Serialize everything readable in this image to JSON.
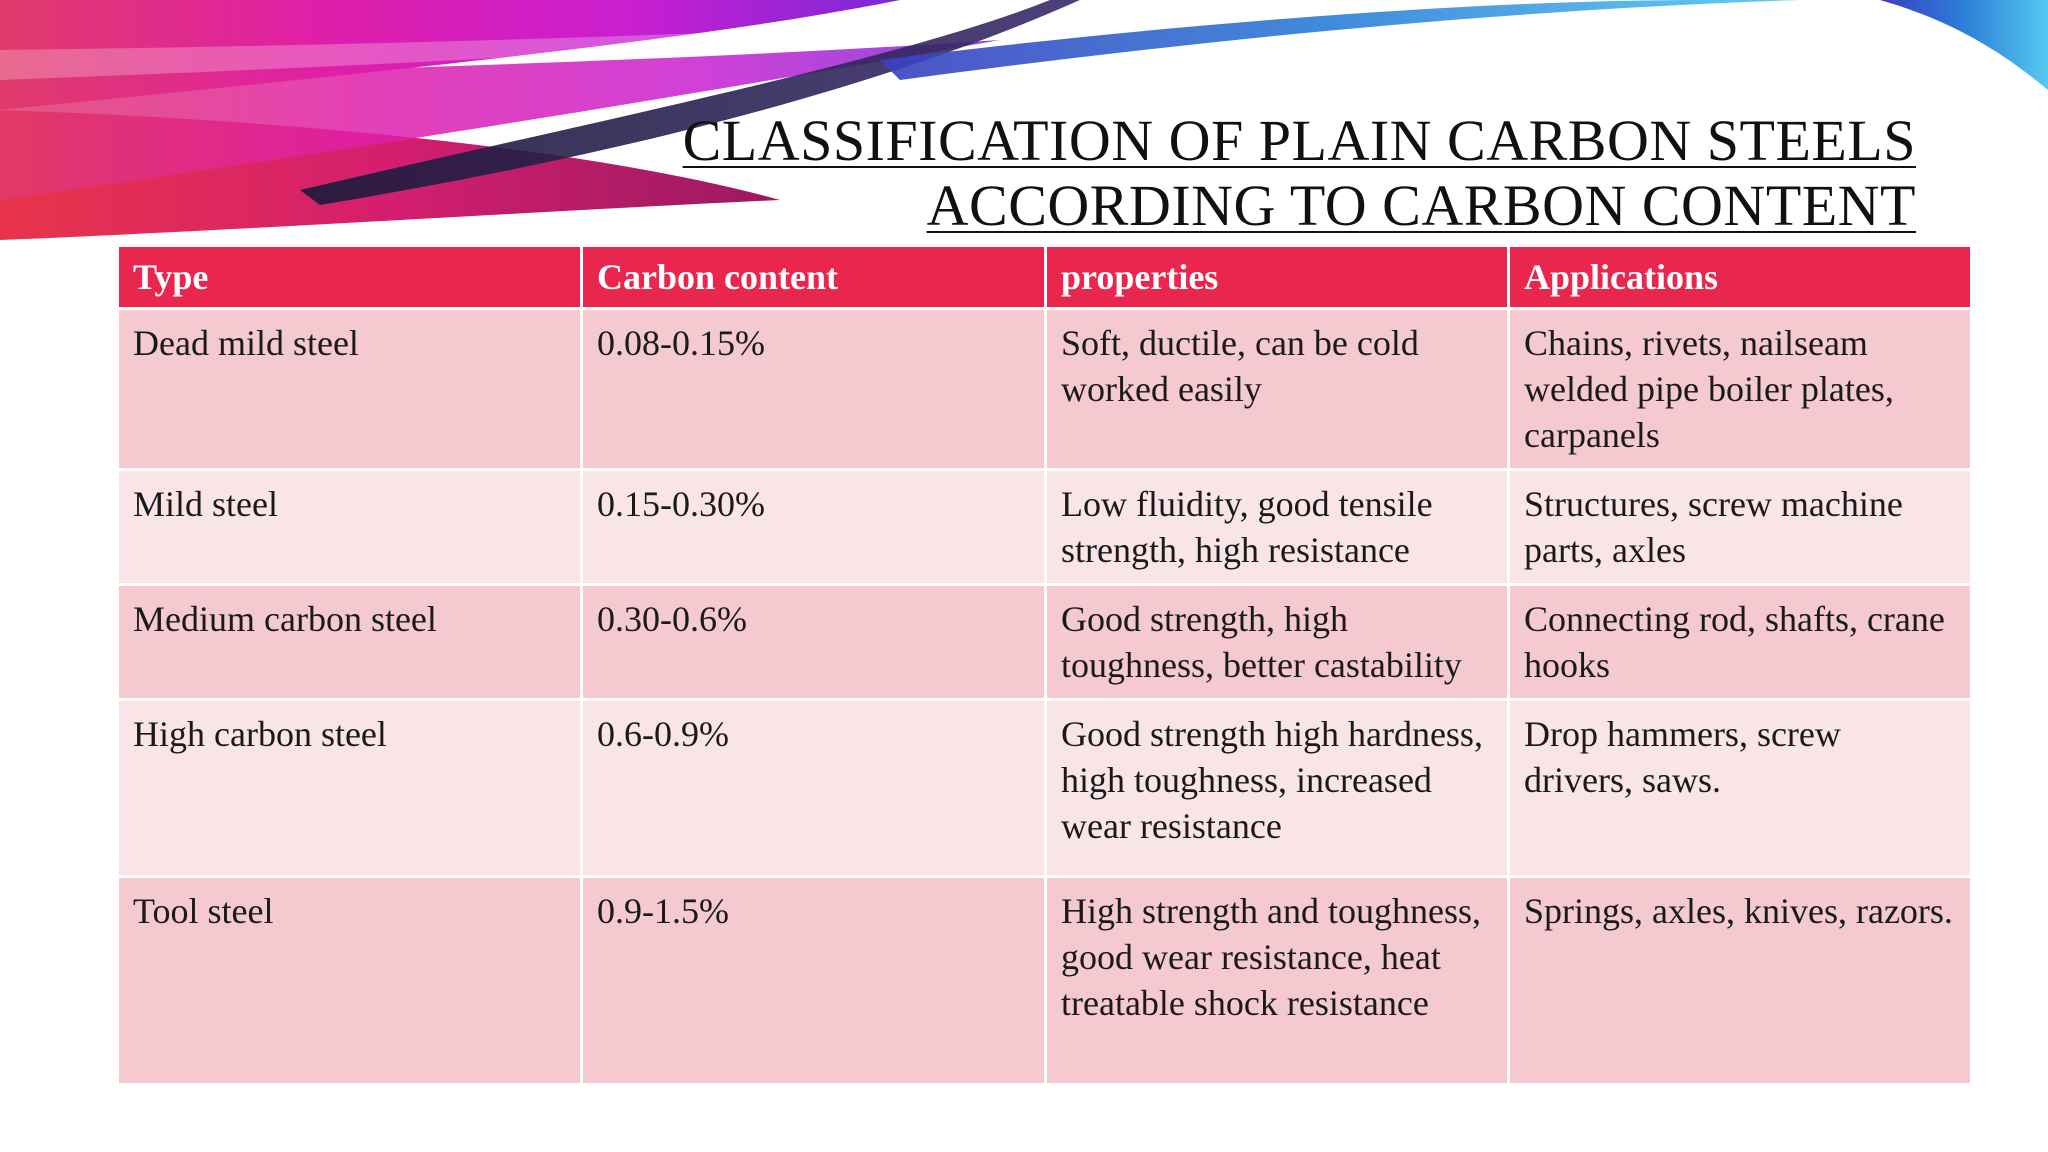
{
  "slide": {
    "title_line1": "CLASSIFICATION OF PLAIN CARBON STEELS",
    "title_line2": "ACCORDING TO CARBON CONTENT",
    "colors": {
      "header": "#e8264e",
      "row_dark": "#f4c9d0",
      "row_light": "#f9e4e7",
      "swoosh_magenta": "#e01fa8",
      "swoosh_blue": "#2c7fd8"
    }
  },
  "table": {
    "headers": [
      "Type",
      "Carbon content",
      "properties",
      "Applications"
    ],
    "rows": [
      {
        "type": "Dead mild steel",
        "carbon": "0.08-0.15%",
        "properties": "Soft, ductile, can be cold worked easily",
        "applications": "Chains, rivets, nailseam welded pipe boiler plates, carpanels"
      },
      {
        "type": "Mild steel",
        "carbon": "0.15-0.30%",
        "properties": "Low fluidity, good tensile strength, high resistance",
        "applications": "Structures, screw machine parts, axles"
      },
      {
        "type": "Medium carbon steel",
        "carbon": "0.30-0.6%",
        "properties": "Good strength, high toughness, better castability",
        "applications": "Connecting rod, shafts, crane hooks"
      },
      {
        "type": "High carbon steel",
        "carbon": "0.6-0.9%",
        "properties": "Good strength high hardness, high toughness, increased wear resistance",
        "applications": "Drop hammers, screw drivers, saws."
      },
      {
        "type": "Tool steel",
        "carbon": "0.9-1.5%",
        "properties": "High strength and toughness, good wear resistance, heat treatable shock resistance",
        "applications": "Springs, axles, knives, razors."
      }
    ]
  }
}
